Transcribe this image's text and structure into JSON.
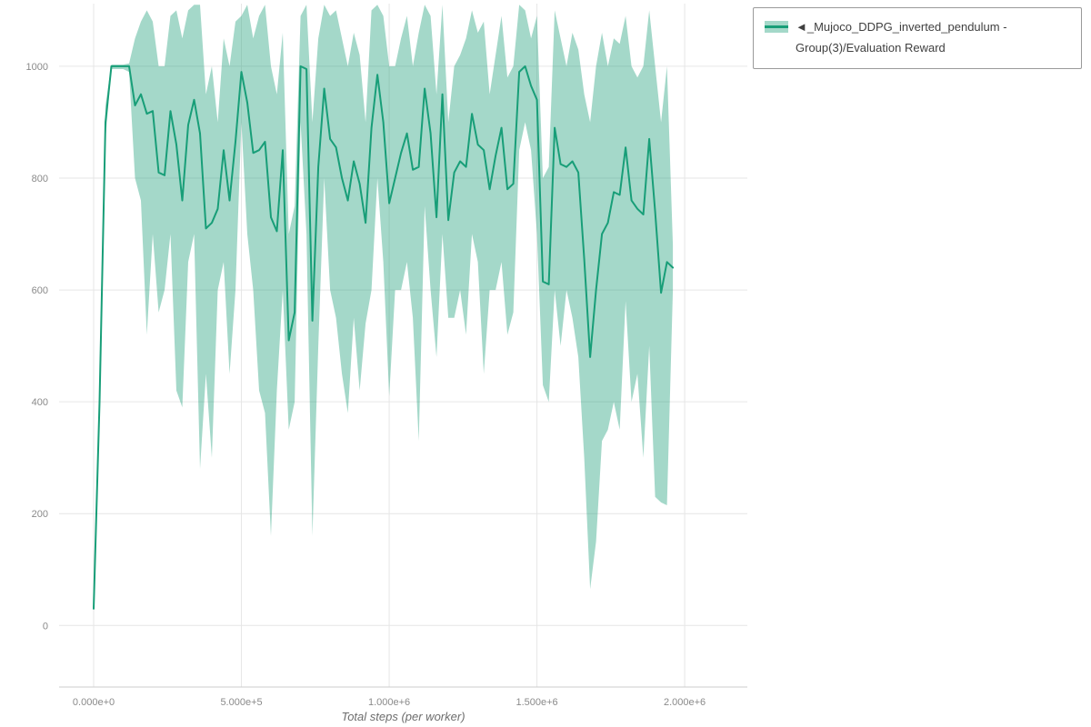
{
  "chart_data": {
    "type": "line",
    "title": "",
    "xlabel": "Total steps (per worker)",
    "ylabel": "",
    "xlim": [
      -117000,
      2212000
    ],
    "ylim": [
      -110,
      1112
    ],
    "x_ticks": [
      0,
      500000,
      1000000,
      1500000,
      2000000
    ],
    "x_tick_labels": [
      "0.000e+0",
      "5.000e+5",
      "1.000e+6",
      "1.500e+6",
      "2.000e+6"
    ],
    "y_ticks": [
      0,
      200,
      400,
      600,
      800,
      1000
    ],
    "y_tick_labels": [
      "0",
      "200",
      "400",
      "600",
      "800",
      "1000"
    ],
    "grid": true,
    "grid_color": "#e6e6e6",
    "axis_line_color": "#cccccc",
    "tick_color": "#8a8a8a",
    "legend_position": "top-right",
    "series": [
      {
        "name": "◄_Mujoco_DDPG_inverted_pendulum - Group(3)/Evaluation Reward",
        "color": "#189e78",
        "band_color": "#1b9e77",
        "band_opacity": 0.4,
        "x": [
          0,
          20000,
          40000,
          60000,
          80000,
          100000,
          120000,
          140000,
          160000,
          180000,
          200000,
          220000,
          240000,
          260000,
          280000,
          300000,
          320000,
          340000,
          360000,
          380000,
          400000,
          420000,
          440000,
          460000,
          480000,
          500000,
          520000,
          540000,
          560000,
          580000,
          600000,
          620000,
          640000,
          660000,
          680000,
          700000,
          720000,
          740000,
          760000,
          780000,
          800000,
          820000,
          840000,
          860000,
          880000,
          900000,
          920000,
          940000,
          960000,
          980000,
          1000000,
          1020000,
          1040000,
          1060000,
          1080000,
          1100000,
          1120000,
          1140000,
          1160000,
          1180000,
          1200000,
          1220000,
          1240000,
          1260000,
          1280000,
          1300000,
          1320000,
          1340000,
          1360000,
          1380000,
          1400000,
          1420000,
          1440000,
          1460000,
          1480000,
          1500000,
          1520000,
          1540000,
          1560000,
          1580000,
          1600000,
          1620000,
          1640000,
          1660000,
          1680000,
          1700000,
          1720000,
          1740000,
          1760000,
          1780000,
          1800000,
          1820000,
          1840000,
          1860000,
          1880000,
          1900000,
          1920000,
          1940000,
          1960000
        ],
        "mean": [
          30,
          400,
          900,
          1000,
          1000,
          1000,
          1000,
          930,
          950,
          915,
          920,
          810,
          805,
          920,
          860,
          760,
          895,
          940,
          880,
          710,
          720,
          745,
          850,
          760,
          865,
          990,
          935,
          845,
          850,
          865,
          730,
          705,
          850,
          510,
          560,
          1000,
          995,
          545,
          820,
          960,
          870,
          855,
          800,
          760,
          830,
          790,
          720,
          890,
          985,
          900,
          755,
          800,
          845,
          880,
          815,
          820,
          960,
          880,
          730,
          950,
          725,
          810,
          830,
          820,
          915,
          860,
          850,
          780,
          840,
          890,
          780,
          790,
          990,
          1000,
          965,
          940,
          615,
          610,
          890,
          825,
          820,
          830,
          810,
          655,
          480,
          600,
          700,
          720,
          775,
          770,
          855,
          760,
          745,
          735,
          870,
          740,
          595,
          650,
          640
        ],
        "lower": [
          25,
          380,
          870,
          995,
          995,
          995,
          990,
          800,
          760,
          520,
          700,
          560,
          600,
          700,
          420,
          390,
          650,
          700,
          280,
          450,
          300,
          600,
          650,
          450,
          600,
          900,
          700,
          600,
          420,
          380,
          160,
          420,
          600,
          350,
          400,
          900,
          700,
          160,
          500,
          800,
          600,
          550,
          450,
          380,
          550,
          420,
          540,
          600,
          800,
          650,
          410,
          600,
          600,
          650,
          550,
          330,
          750,
          600,
          480,
          700,
          550,
          550,
          600,
          520,
          700,
          650,
          450,
          600,
          600,
          650,
          520,
          560,
          850,
          900,
          850,
          700,
          430,
          400,
          600,
          500,
          600,
          550,
          480,
          300,
          65,
          150,
          330,
          350,
          400,
          350,
          580,
          400,
          450,
          300,
          500,
          230,
          220,
          215,
          600
        ],
        "upper": [
          35,
          420,
          930,
          1003,
          1003,
          1003,
          1005,
          1050,
          1080,
          1100,
          1080,
          1000,
          1000,
          1090,
          1100,
          1050,
          1100,
          1110,
          1110,
          950,
          1000,
          900,
          1050,
          1000,
          1080,
          1090,
          1110,
          1050,
          1090,
          1110,
          1000,
          950,
          1060,
          700,
          750,
          1090,
          1110,
          900,
          1050,
          1110,
          1090,
          1100,
          1050,
          1000,
          1060,
          1020,
          900,
          1100,
          1110,
          1090,
          1000,
          1000,
          1050,
          1090,
          1000,
          1060,
          1110,
          1090,
          950,
          1110,
          900,
          1000,
          1020,
          1050,
          1100,
          1060,
          1080,
          950,
          1020,
          1090,
          980,
          1000,
          1110,
          1100,
          1050,
          1090,
          800,
          820,
          1100,
          1050,
          1000,
          1060,
          1030,
          950,
          900,
          1000,
          1060,
          1000,
          1050,
          1040,
          1090,
          1000,
          980,
          1000,
          1100,
          1000,
          900,
          1000,
          680
        ]
      }
    ]
  }
}
